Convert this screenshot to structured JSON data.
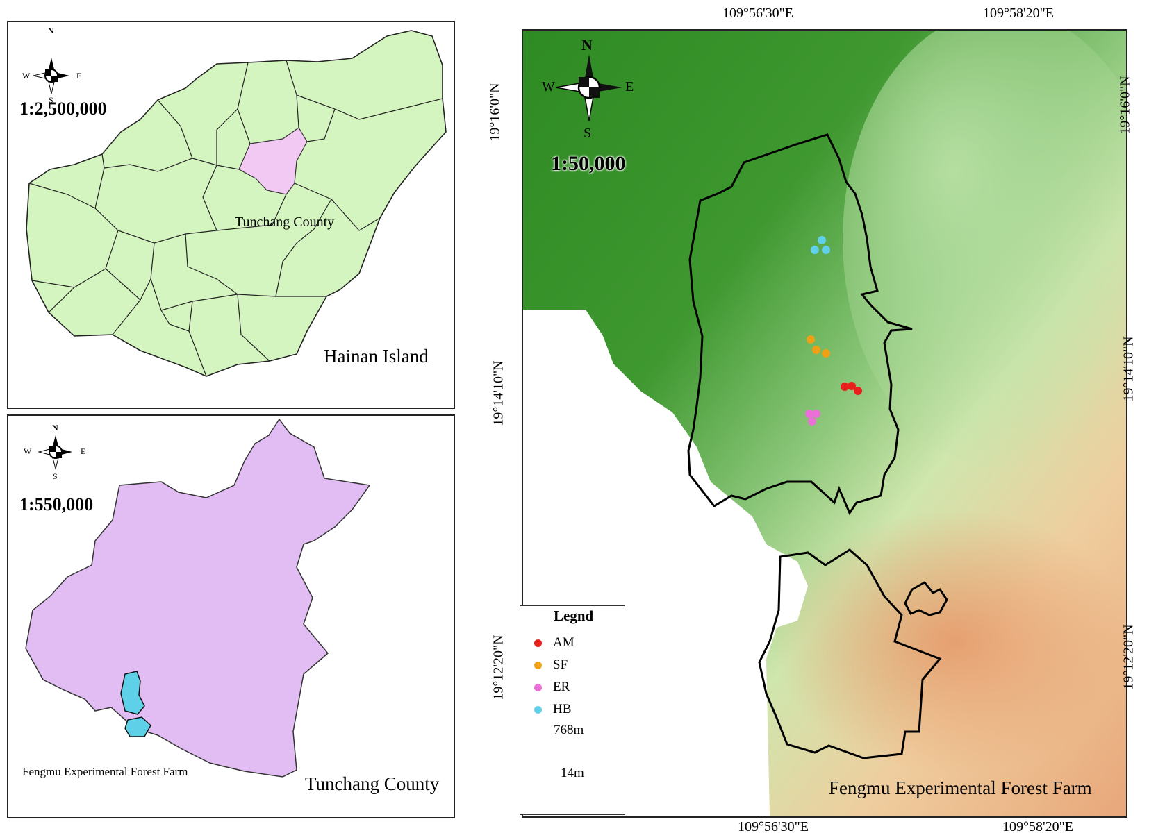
{
  "hainan_panel": {
    "scale": "1:2,500,000",
    "highlight_label": "Tunchang County",
    "title": "Hainan Island",
    "compass": {
      "n": "N",
      "s": "S",
      "e": "E",
      "w": "W"
    }
  },
  "tunchang_panel": {
    "scale": "1:550,000",
    "farm_label": "Fengmu Experimental Forest Farm",
    "title": "Tunchang County",
    "compass": {
      "n": "N",
      "s": "S",
      "e": "E",
      "w": "W"
    }
  },
  "fengmu_panel": {
    "scale": "1:50,000",
    "title": "Fengmu Experimental Forest Farm",
    "compass": {
      "n": "N",
      "s": "S",
      "e": "E",
      "w": "W"
    },
    "lon_labels": [
      "109°56'30\"E",
      "109°58'20\"E"
    ],
    "lat_labels": [
      "19°16'0\"N",
      "19°14'10\"N",
      "19°12'20\"N"
    ]
  },
  "legend": {
    "title": "Legnd",
    "items": [
      {
        "label": "AM",
        "color": "#e8201c"
      },
      {
        "label": "SF",
        "color": "#f0a015"
      },
      {
        "label": "ER",
        "color": "#ea6fd6"
      },
      {
        "label": "HB",
        "color": "#63d0ea"
      }
    ],
    "elevation_max": "768m",
    "elevation_min": "14m"
  },
  "colors": {
    "land_green": "#d4f5c0",
    "tunchang_pink": "#f2c9f2",
    "tunchang_purple": "#e2bdf3",
    "farm_cyan": "#5ed0e8",
    "forest_green": "#3f942d"
  }
}
